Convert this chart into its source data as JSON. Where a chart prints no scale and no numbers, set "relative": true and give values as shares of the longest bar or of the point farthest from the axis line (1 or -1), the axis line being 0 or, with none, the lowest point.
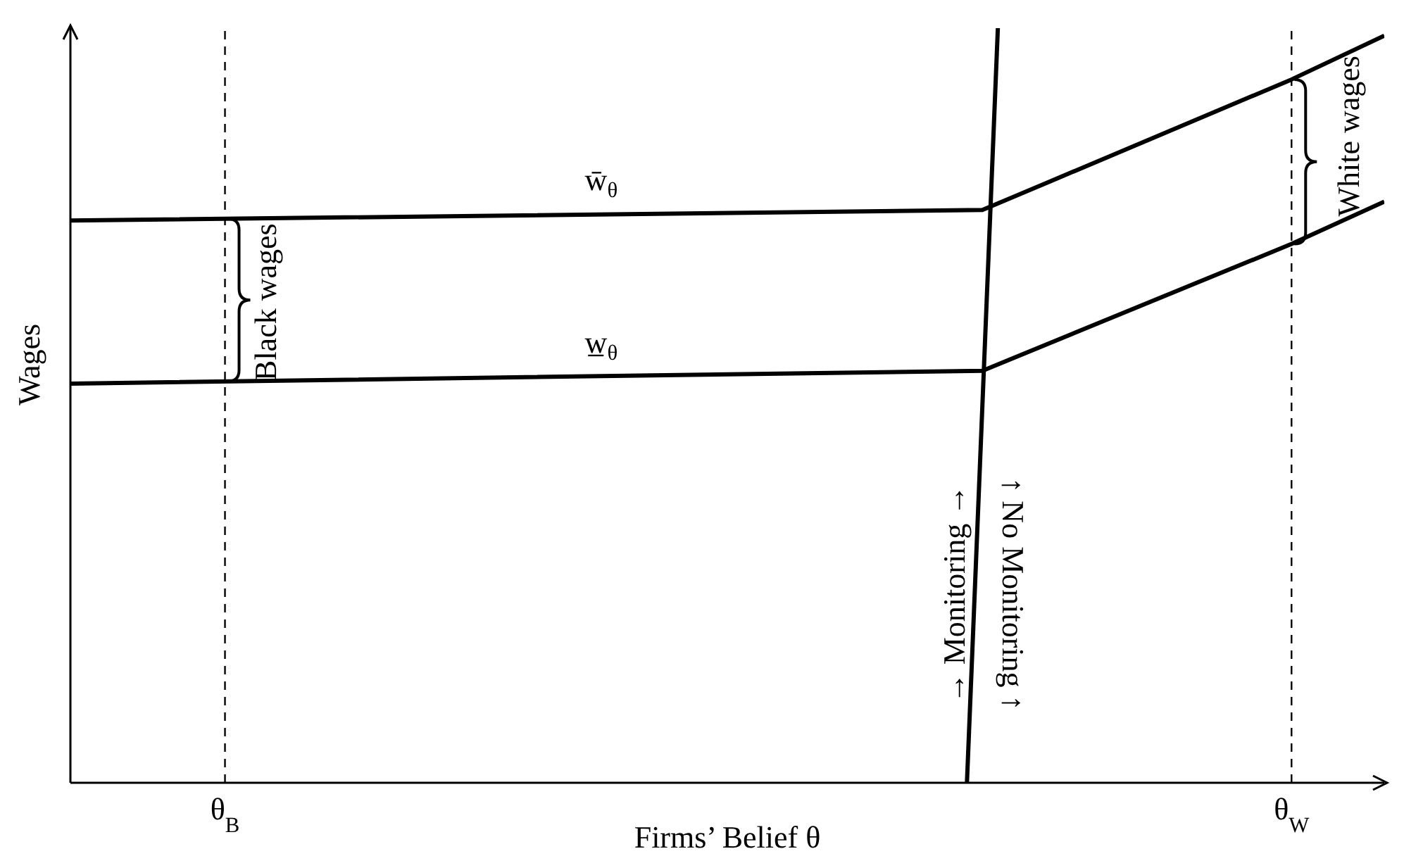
{
  "chart_data": {
    "type": "line",
    "relative": true,
    "xlabel": "Firms’ Belief θ",
    "ylabel": "Wages",
    "marker": "none",
    "line_style": "solid",
    "categories": [
      null,
      null,
      null,
      null,
      null,
      null,
      null,
      null,
      null,
      null,
      "θ$_{B}$",
      null,
      null,
      null,
      null,
      null,
      null,
      null,
      null,
      null,
      null,
      null,
      null,
      null,
      null,
      null,
      null,
      null,
      null,
      null,
      null,
      null,
      null,
      null,
      null,
      null,
      null,
      null,
      null,
      null,
      null,
      null,
      null,
      null,
      null,
      null,
      null,
      null,
      null,
      null,
      null,
      null,
      null,
      null,
      null,
      null,
      null,
      null,
      null,
      null,
      null,
      null,
      null,
      null,
      null,
      null,
      null,
      null,
      null,
      null,
      null,
      null,
      null,
      null,
      null,
      null,
      null,
      null,
      null,
      "θ$_{W}$",
      null,
      null,
      null,
      null,
      null,
      null
    ],
    "series": [
      {
        "color": "#000000",
        "values": [
          0.745,
          null,
          null,
          null,
          null,
          null,
          null,
          null,
          null,
          null,
          null,
          null,
          null,
          null,
          null,
          null,
          null,
          null,
          null,
          null,
          null,
          null,
          null,
          null,
          null,
          null,
          null,
          null,
          null,
          null,
          null,
          null,
          null,
          null,
          null,
          null,
          null,
          null,
          null,
          null,
          null,
          null,
          null,
          null,
          null,
          null,
          null,
          null,
          null,
          null,
          null,
          null,
          null,
          null,
          null,
          null,
          null,
          null,
          null,
          0.759,
          null,
          null,
          null,
          null,
          null,
          null,
          null,
          null,
          null,
          null,
          null,
          null,
          null,
          null,
          null,
          null,
          null,
          null,
          null,
          0.932,
          null,
          null,
          null,
          null,
          null,
          0.99
        ]
      },
      {
        "color": "#000000",
        "values": [
          0.529,
          null,
          null,
          null,
          null,
          null,
          null,
          null,
          null,
          null,
          null,
          null,
          null,
          null,
          null,
          null,
          null,
          null,
          null,
          null,
          null,
          null,
          null,
          null,
          null,
          null,
          null,
          null,
          null,
          null,
          null,
          null,
          null,
          null,
          null,
          null,
          null,
          null,
          null,
          null,
          null,
          null,
          null,
          null,
          null,
          null,
          null,
          null,
          null,
          null,
          null,
          null,
          null,
          null,
          null,
          null,
          null,
          null,
          null,
          0.546,
          null,
          null,
          null,
          null,
          null,
          null,
          null,
          null,
          null,
          null,
          null,
          null,
          null,
          null,
          null,
          null,
          null,
          null,
          null,
          0.714,
          null,
          null,
          null,
          null,
          null,
          0.77
        ]
      },
      {
        "color": "#000000",
        "values": [
          null,
          null,
          null,
          null,
          null,
          null,
          null,
          null,
          null,
          null,
          null,
          null,
          null,
          null,
          null,
          null,
          null,
          null,
          null,
          null,
          null,
          null,
          null,
          null,
          null,
          null,
          null,
          null,
          null,
          null,
          null,
          null,
          null,
          null,
          null,
          null,
          null,
          null,
          null,
          null,
          null,
          null,
          null,
          null,
          null,
          null,
          null,
          null,
          null,
          null,
          null,
          null,
          null,
          null,
          null,
          null,
          null,
          null,
          0,
          null,
          1,
          null,
          null,
          null,
          null,
          null,
          null,
          null,
          null,
          null,
          null,
          null,
          null,
          null,
          null,
          null,
          null,
          null,
          null,
          null,
          null,
          null,
          null,
          null,
          null,
          null
        ]
      }
    ],
    "ref_lines": [
      {
        "axis": "x",
        "value": "θ$_{B}$",
        "color": "#000000",
        "line_style": "dashed"
      },
      {
        "axis": "x",
        "value": "θ$_{W}$",
        "color": "#000000",
        "line_style": "dashed"
      }
    ],
    "annotations": [
      "w̄$_{θ}$",
      "w̲$_{θ}$",
      "Black wages",
      "White wages",
      "→ Monitoring →",
      "↑ No Monitoring ↑"
    ]
  }
}
